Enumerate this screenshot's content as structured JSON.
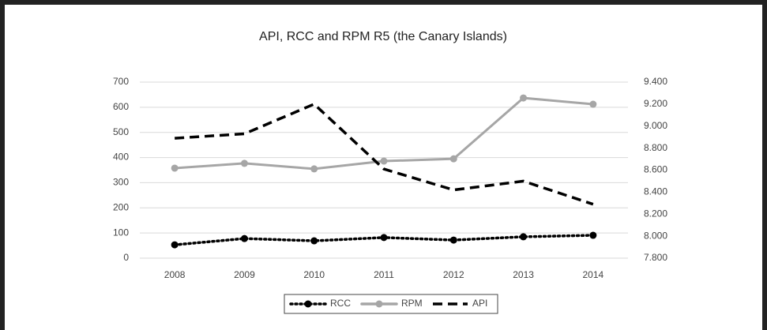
{
  "chart_data": {
    "type": "line",
    "title": "API, RCC  and RPM R5 (the Canary Islands)",
    "categories": [
      "2008",
      "2009",
      "2010",
      "2011",
      "2012",
      "2013",
      "2014"
    ],
    "series": [
      {
        "name": "RCC",
        "color": "#000000",
        "style": "dotted",
        "marker": true,
        "values": [
          53,
          78,
          69,
          82,
          72,
          85,
          91
        ]
      },
      {
        "name": "RPM",
        "color": "#a6a6a6",
        "style": "solid",
        "marker": true,
        "values": [
          358,
          377,
          355,
          386,
          395,
          637,
          612
        ]
      },
      {
        "name": "API",
        "color": "#000000",
        "style": "dashed",
        "marker": false,
        "axis": "y2",
        "values": [
          8890,
          8930,
          9200,
          8610,
          8420,
          8500,
          8290
        ]
      }
    ],
    "ylim": [
      0,
      700
    ],
    "yticks": [
      0,
      100,
      200,
      300,
      400,
      500,
      600,
      700
    ],
    "y2lim": [
      7800,
      9400
    ],
    "y2ticks": [
      {
        "value": 7800,
        "label": "7.800"
      },
      {
        "value": 8000,
        "label": "8.000"
      },
      {
        "value": 8200,
        "label": "8.200"
      },
      {
        "value": 8400,
        "label": "8.400"
      },
      {
        "value": 8600,
        "label": "8.600"
      },
      {
        "value": 8800,
        "label": "8.800"
      },
      {
        "value": 9000,
        "label": "9.000"
      },
      {
        "value": 9200,
        "label": "9.200"
      },
      {
        "value": 9400,
        "label": "9.400"
      }
    ],
    "grid": true,
    "legend": "bottom"
  }
}
